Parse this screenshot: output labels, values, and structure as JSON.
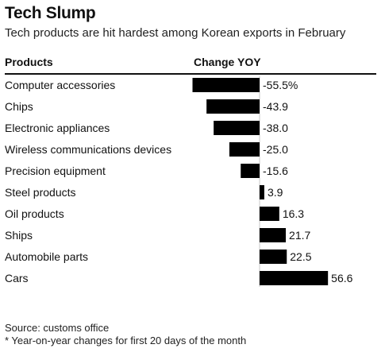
{
  "header": {
    "title": "Tech Slump",
    "subtitle": "Tech products are hit hardest among Korean exports in February",
    "col_products": "Products",
    "col_change": "Change YOY"
  },
  "footer": {
    "source": "Source: customs office",
    "note": "* Year-on-year changes for first 20 days of the month"
  },
  "chart_data": {
    "type": "bar",
    "orientation": "horizontal",
    "categories": [
      "Computer accessories",
      "Chips",
      "Electronic appliances",
      "Wireless communications devices",
      "Precision equipment",
      "Steel products",
      "Oil products",
      "Ships",
      "Automobile parts",
      "Cars"
    ],
    "values": [
      -55.5,
      -43.9,
      -38.0,
      -25.0,
      -15.6,
      3.9,
      16.3,
      21.7,
      22.5,
      56.6
    ],
    "value_labels": [
      "-55.5%",
      "-43.9",
      "-38.0",
      "-25.0",
      "-15.6",
      "3.9",
      "16.3",
      "21.7",
      "22.5",
      "56.6"
    ],
    "title": "Tech Slump",
    "subtitle": "Tech products are hit hardest among Korean exports in February",
    "xlabel": "Change YOY",
    "ylabel": "Products",
    "xlim": [
      -55.5,
      56.6
    ],
    "grid": false,
    "bar_color": "#000000",
    "zero_line_color": "#c8c8c8"
  }
}
